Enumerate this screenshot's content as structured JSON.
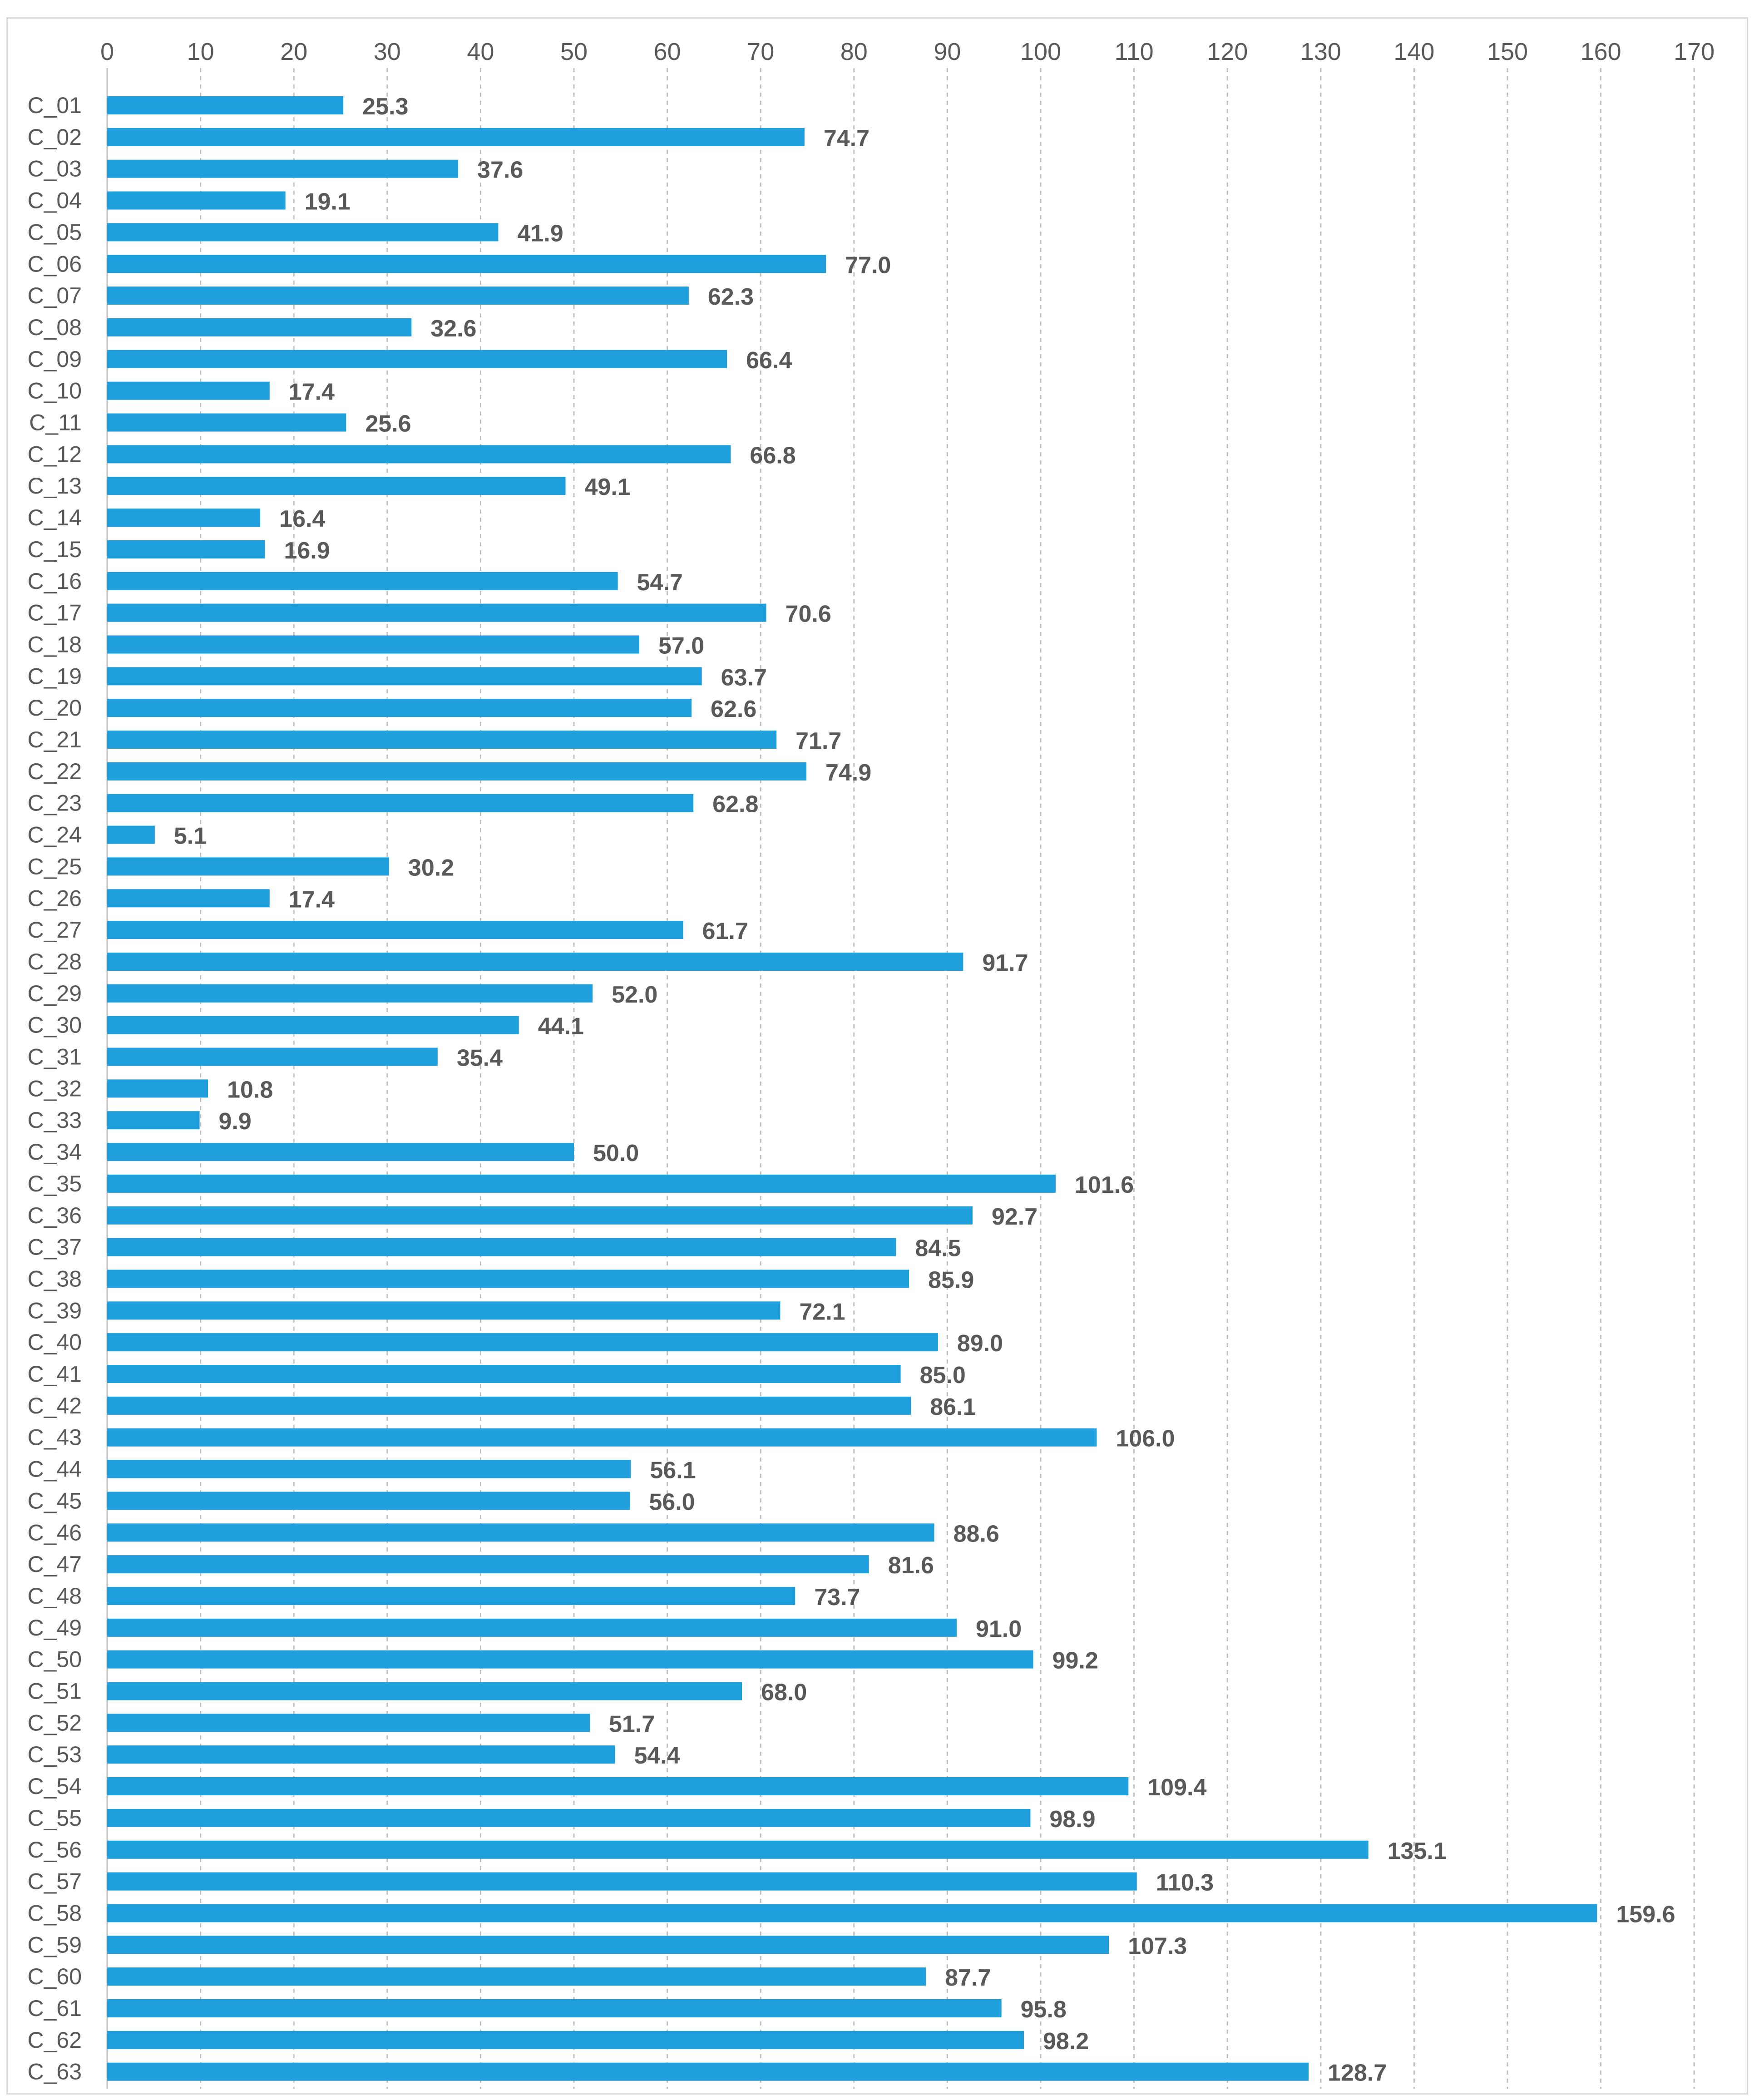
{
  "chart_data": {
    "type": "bar",
    "orientation": "horizontal",
    "title": "",
    "xlabel": "",
    "ylabel": "",
    "xlim": [
      0,
      170
    ],
    "x_ticks": [
      0,
      10,
      20,
      30,
      40,
      50,
      60,
      70,
      80,
      90,
      100,
      110,
      120,
      130,
      140,
      150,
      160,
      170
    ],
    "x_axis_position": "top",
    "grid": "vertical dashed",
    "legend": "none",
    "bar_color": "#1f9fdc",
    "categories": [
      "C_01",
      "C_02",
      "C_03",
      "C_04",
      "C_05",
      "C_06",
      "C_07",
      "C_08",
      "C_09",
      "C_10",
      "C_11",
      "C_12",
      "C_13",
      "C_14",
      "C_15",
      "C_16",
      "C_17",
      "C_18",
      "C_19",
      "C_20",
      "C_21",
      "C_22",
      "C_23",
      "C_24",
      "C_25",
      "C_26",
      "C_27",
      "C_28",
      "C_29",
      "C_30",
      "C_31",
      "C_32",
      "C_33",
      "C_34",
      "C_35",
      "C_36",
      "C_37",
      "C_38",
      "C_39",
      "C_40",
      "C_41",
      "C_42",
      "C_43",
      "C_44",
      "C_45",
      "C_46",
      "C_47",
      "C_48",
      "C_49",
      "C_50",
      "C_51",
      "C_52",
      "C_53",
      "C_54",
      "C_55",
      "C_56",
      "C_57",
      "C_58",
      "C_59",
      "C_60",
      "C_61",
      "C_62",
      "C_63"
    ],
    "values": [
      25.3,
      74.7,
      37.6,
      19.1,
      41.9,
      77.0,
      62.3,
      32.6,
      66.4,
      17.4,
      25.6,
      66.8,
      49.1,
      16.4,
      16.9,
      54.7,
      70.6,
      57.0,
      63.7,
      62.6,
      71.7,
      74.9,
      62.8,
      5.1,
      30.2,
      17.4,
      61.7,
      91.7,
      52.0,
      44.1,
      35.4,
      10.8,
      9.9,
      50.0,
      101.6,
      92.7,
      84.5,
      85.9,
      72.1,
      89.0,
      85.0,
      86.1,
      106.0,
      56.1,
      56.0,
      88.6,
      81.6,
      73.7,
      91.0,
      99.2,
      68.0,
      51.7,
      54.4,
      109.4,
      98.9,
      135.1,
      110.3,
      159.6,
      107.3,
      87.7,
      95.8,
      98.2,
      128.7
    ],
    "data_labels": [
      "25.3",
      "74.7",
      "37.6",
      "19.1",
      "41.9",
      "77.0",
      "62.3",
      "32.6",
      "66.4",
      "17.4",
      "25.6",
      "66.8",
      "49.1",
      "16.4",
      "16.9",
      "54.7",
      "70.6",
      "57.0",
      "63.7",
      "62.6",
      "71.7",
      "74.9",
      "62.8",
      "5.1",
      "30.2",
      "17.4",
      "61.7",
      "91.7",
      "52.0",
      "44.1",
      "35.4",
      "10.8",
      "9.9",
      "50.0",
      "101.6",
      "92.7",
      "84.5",
      "85.9",
      "72.1",
      "89.0",
      "85.0",
      "86.1",
      "106.0",
      "56.1",
      "56.0",
      "88.6",
      "81.6",
      "73.7",
      "91.0",
      "99.2",
      "68.0",
      "51.7",
      "54.4",
      "109.4",
      "98.9",
      "135.1",
      "110.3",
      "159.6",
      "107.3",
      "87.7",
      "95.8",
      "98.2",
      "128.7"
    ]
  }
}
